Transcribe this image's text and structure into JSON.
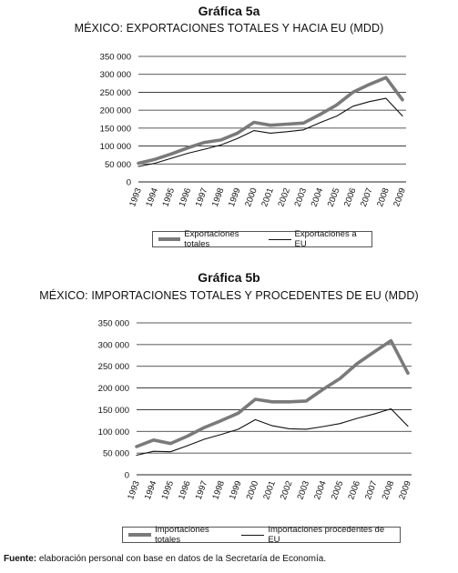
{
  "chart_data": [
    {
      "type": "line",
      "title": "Gráfica 5a",
      "subtitle": "MÉXICO: EXPORTACIONES TOTALES Y HACIA EU (MDD)",
      "xlabel": "",
      "ylabel": "",
      "ylim": [
        0,
        350000
      ],
      "yticks": [
        "0",
        "50 000",
        "100 000",
        "150 000",
        "200 000",
        "250 000",
        "300 000",
        "350 000"
      ],
      "categories": [
        "1993",
        "1994",
        "1995",
        "1996",
        "1997",
        "1998",
        "1999",
        "2000",
        "2001",
        "2002",
        "2003",
        "2004",
        "2005",
        "2006",
        "2007",
        "2008",
        "2009"
      ],
      "series": [
        {
          "name": "Exportaciones totales",
          "color": "#7a7a7a",
          "values": [
            52000,
            63000,
            78000,
            95000,
            110000,
            117000,
            136000,
            166000,
            158000,
            161000,
            164000,
            188000,
            214000,
            250000,
            272000,
            291000,
            229000
          ]
        },
        {
          "name": "Exportaciones a EU",
          "color": "#111111",
          "values": [
            43000,
            52000,
            66000,
            80000,
            91000,
            103000,
            121000,
            143000,
            136000,
            140000,
            145000,
            165000,
            183000,
            211000,
            224000,
            233000,
            184000
          ]
        }
      ],
      "grid": "horizontal",
      "legend": "bottom"
    },
    {
      "type": "line",
      "title": "Gráfica 5b",
      "subtitle": "MÉXICO: IMPORTACIONES TOTALES Y PROCEDENTES DE EU (MDD)",
      "xlabel": "",
      "ylabel": "",
      "ylim": [
        0,
        350000
      ],
      "yticks": [
        "0",
        "50 000",
        "100 000",
        "150 000",
        "200 000",
        "250 000",
        "300 000",
        "350 000"
      ],
      "categories": [
        "1993",
        "1994",
        "1995",
        "1996",
        "1997",
        "1998",
        "1999",
        "2000",
        "2001",
        "2002",
        "2003",
        "2004",
        "2005",
        "2006",
        "2007",
        "2008",
        "2009"
      ],
      "series": [
        {
          "name": "Importaciones totales",
          "color": "#7a7a7a",
          "values": [
            65000,
            80000,
            72000,
            89000,
            109000,
            125000,
            142000,
            174000,
            168000,
            168000,
            170000,
            197000,
            222000,
            256000,
            283000,
            309000,
            234000
          ]
        },
        {
          "name": "Importaciones procedentes de EU",
          "color": "#111111",
          "values": [
            45000,
            54000,
            53000,
            67000,
            82000,
            93000,
            105000,
            127000,
            113000,
            106000,
            105000,
            111000,
            118000,
            130000,
            140000,
            152000,
            112000
          ]
        }
      ],
      "grid": "horizontal",
      "legend": "bottom"
    }
  ],
  "source": {
    "label": "Fuente:",
    "text": "elaboración personal con base en datos de la Secretaría de Economía."
  }
}
